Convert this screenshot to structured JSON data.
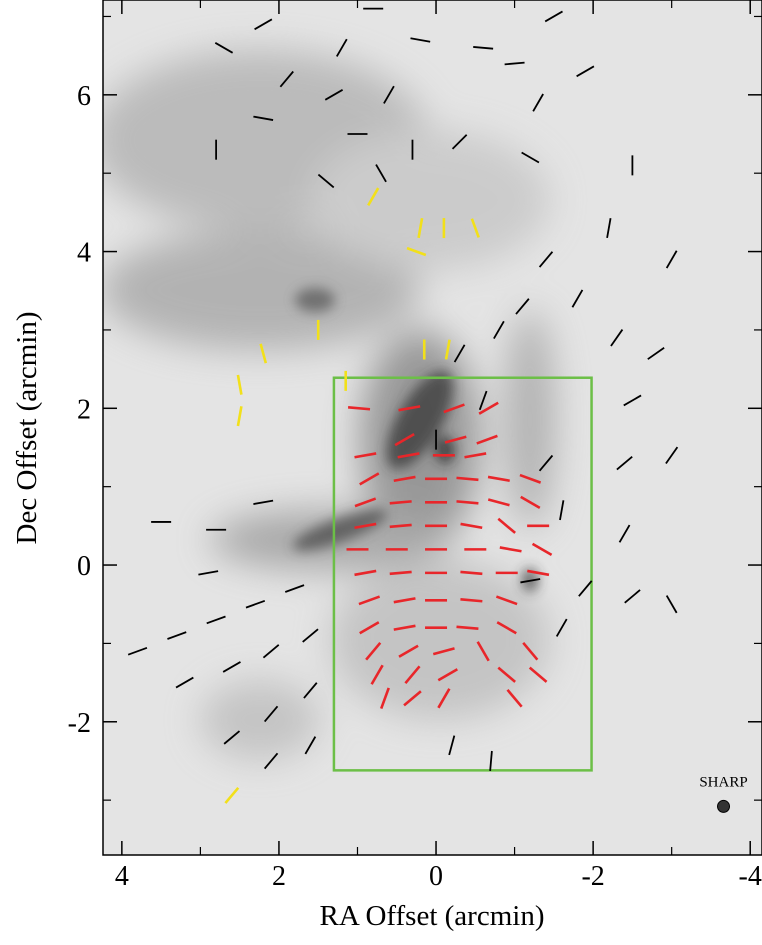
{
  "chart_data": {
    "type": "vector",
    "xlabel": "RA Offset (arcmin)",
    "ylabel": "Dec Offset (arcmin)",
    "xlim": [
      4.24,
      -4.15
    ],
    "ylim": [
      -3.7,
      7.21
    ],
    "xticks": [
      4,
      2,
      0,
      -2,
      -4
    ],
    "yticks": [
      6,
      4,
      2,
      0,
      -2
    ],
    "xminor": [
      3,
      1,
      -1,
      -3
    ],
    "yminor": [
      7,
      5,
      3,
      1,
      -1,
      -3
    ],
    "region": {
      "color": "#6cbf47",
      "x": [
        1.3,
        -1.98
      ],
      "y": [
        2.39,
        -2.62
      ]
    },
    "beam": {
      "label": "SHARP",
      "x": -3.66,
      "y": -3.08
    },
    "series": [
      {
        "color": "#e8262a",
        "x": [
          0.98,
          0.34,
          -0.23,
          -0.67,
          0.4,
          -0.25,
          -0.65,
          0.9,
          0.35,
          -0.1,
          -0.5,
          0.85,
          0.4,
          0,
          -0.4,
          -0.8,
          -1.2,
          0.9,
          0.45,
          0,
          -0.4,
          -0.8,
          -1.2,
          0.9,
          0.45,
          0,
          -0.45,
          -0.9,
          -1.3,
          1.0,
          0.5,
          0,
          -0.5,
          -0.95,
          -1.35,
          0.9,
          0.45,
          0,
          -0.45,
          -0.9,
          -1.3,
          0.85,
          0.4,
          0,
          -0.45,
          -0.9,
          0.85,
          0.4,
          0,
          -0.4,
          -0.9,
          0.8,
          0.35,
          -0.1,
          -0.6,
          -1.2,
          0.75,
          0.3,
          -0.15,
          -0.9,
          -1.3,
          0.65,
          0.3,
          -0.1,
          -1.0
        ],
        "y": [
          2.0,
          2.0,
          2.0,
          2.0,
          1.6,
          1.6,
          1.6,
          1.4,
          1.4,
          1.4,
          1.4,
          1.1,
          1.1,
          1.1,
          1.1,
          1.1,
          1.1,
          0.8,
          0.8,
          0.8,
          0.8,
          0.8,
          0.8,
          0.5,
          0.5,
          0.5,
          0.5,
          0.5,
          0.5,
          0.2,
          0.2,
          0.2,
          0.2,
          0.2,
          0.2,
          -0.1,
          -0.1,
          -0.1,
          -0.1,
          -0.1,
          -0.1,
          -0.45,
          -0.45,
          -0.45,
          -0.45,
          -0.45,
          -0.8,
          -0.8,
          -0.8,
          -0.8,
          -0.8,
          -1.1,
          -1.1,
          -1.1,
          -1.1,
          -1.1,
          -1.4,
          -1.4,
          -1.4,
          -1.4,
          -1.4,
          -1.7,
          -1.7,
          -1.7,
          -1.7
        ],
        "angle": [
          95,
          80,
          70,
          60,
          60,
          75,
          70,
          80,
          80,
          90,
          80,
          60,
          80,
          90,
          95,
          100,
          110,
          70,
          85,
          90,
          95,
          105,
          120,
          80,
          85,
          90,
          100,
          130,
          90,
          90,
          90,
          90,
          90,
          100,
          120,
          80,
          85,
          90,
          95,
          90,
          100,
          70,
          80,
          90,
          95,
          110,
          60,
          80,
          90,
          95,
          120,
          40,
          60,
          75,
          150,
          140,
          30,
          40,
          60,
          130,
          130,
          20,
          50,
          30,
          140
        ]
      },
      {
        "color": "#000000",
        "x": [
          3.8,
          3.3,
          2.8,
          2.3,
          1.8,
          3.2,
          2.6,
          2.1,
          1.6,
          2.6,
          2.1,
          1.6,
          2.1,
          1.6,
          2.9,
          3.5,
          2.2,
          2.8,
          -0.2,
          -0.7,
          -1.2,
          -1.6,
          -1.9,
          -2.5,
          -2.4,
          -2.4,
          -2.5,
          -3.0,
          -2.3,
          -1.8,
          -2.8,
          -3.0,
          -2.2,
          -2.5,
          -1.9,
          -1.5,
          -0.6,
          0.2,
          -1.0,
          -1.3,
          -1.2,
          -0.3,
          0.6,
          1.3,
          1.0,
          0.7,
          1.4,
          1.9,
          2.2,
          2.8,
          2.7,
          2.2,
          1.2,
          0.8,
          0.3,
          -1.4,
          -1.1,
          -0.8,
          -0.3,
          0.0,
          -0.6,
          -1.4,
          -1.6,
          -3.0
        ],
        "y": [
          -1.1,
          -0.9,
          -0.7,
          -0.5,
          -0.3,
          -1.5,
          -1.3,
          -1.1,
          -0.9,
          -2.2,
          -1.9,
          -1.6,
          -2.5,
          -2.3,
          -0.1,
          0.55,
          0.8,
          0.45,
          -2.3,
          -2.5,
          -0.2,
          -0.8,
          -0.3,
          -0.4,
          0.4,
          1.3,
          2.1,
          1.4,
          2.9,
          3.4,
          2.7,
          3.9,
          4.3,
          5.1,
          6.3,
          7.0,
          6.6,
          6.7,
          6.4,
          5.9,
          5.2,
          5.4,
          6.0,
          6.0,
          5.5,
          5.0,
          4.9,
          6.2,
          5.7,
          5.3,
          6.6,
          6.9,
          6.6,
          7.1,
          5.3,
          3.9,
          3.3,
          3.0,
          2.7,
          1.6,
          2.1,
          1.3,
          0.7,
          -0.5
        ],
        "angle": [
          70,
          70,
          70,
          70,
          70,
          60,
          60,
          50,
          50,
          50,
          40,
          40,
          40,
          30,
          80,
          90,
          80,
          90,
          15,
          5,
          80,
          30,
          40,
          50,
          30,
          50,
          60,
          35,
          35,
          30,
          55,
          30,
          10,
          0,
          60,
          60,
          95,
          100,
          85,
          30,
          120,
          45,
          30,
          60,
          90,
          150,
          130,
          40,
          100,
          0,
          120,
          60,
          30,
          90,
          0,
          40,
          40,
          30,
          30,
          0,
          20,
          40,
          10,
          150
        ]
      },
      {
        "color": "#f2e01a",
        "x": [
          0.8,
          0.2,
          -0.1,
          -0.5,
          0.25,
          1.5,
          2.2,
          2.5,
          2.5,
          1.15,
          0.15,
          -0.15,
          2.6
        ],
        "y": [
          4.7,
          4.3,
          4.3,
          4.3,
          4.0,
          3.0,
          2.7,
          2.3,
          1.9,
          2.35,
          2.75,
          2.75,
          -2.94
        ],
        "angle": [
          30,
          10,
          0,
          160,
          110,
          0,
          165,
          170,
          10,
          0,
          0,
          10,
          40
        ]
      }
    ]
  }
}
